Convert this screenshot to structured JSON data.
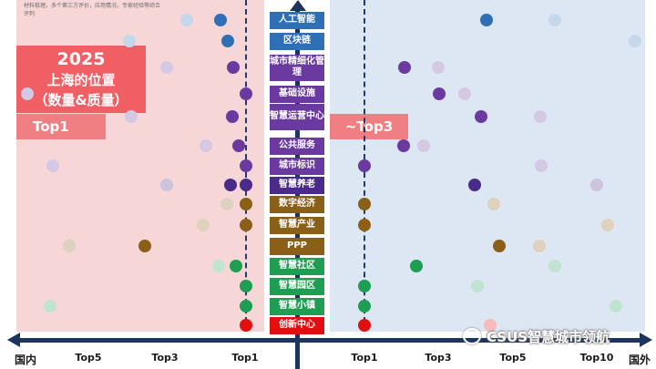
{
  "note": "材料梳理，多个第三方评价，应用情况，专家经验等综合 评判",
  "title": {
    "year": "2025",
    "line1": "上海的位置",
    "line2": "（数量&质量）"
  },
  "domestic_tag": "Top1",
  "international_tag": "~Top3",
  "axis": {
    "left_end": "国内",
    "right_end": "国外",
    "ticks": [
      "Top5",
      "Top3",
      "Top1",
      "Top1",
      "Top3",
      "Top5",
      "Top10"
    ]
  },
  "watermark": "CSUS智慧城市领航",
  "colors": {
    "domestic_bg": "#f7d6d7",
    "international_bg": "#dde6f3",
    "title_box": "#f05f63",
    "tag": "#f07f83",
    "axis": "#1d3461"
  },
  "categories": [
    {
      "label": "人工智能",
      "color": "#2f6fb5"
    },
    {
      "label": "区块链",
      "color": "#2f6fb5"
    },
    {
      "label": "城市精细化管理",
      "color": "#6a3aa0"
    },
    {
      "label": "基础设施",
      "color": "#6a3aa0"
    },
    {
      "label": "智慧运营中心",
      "color": "#6a3aa0"
    },
    {
      "label": "公共服务",
      "color": "#6a3aa0"
    },
    {
      "label": "城市标识",
      "color": "#6a3aa0"
    },
    {
      "label": "智慧养老",
      "color": "#4a2a8a"
    },
    {
      "label": "数字经济",
      "color": "#8a6018"
    },
    {
      "label": "智慧产业",
      "color": "#8a6018"
    },
    {
      "label": "PPP",
      "color": "#8a6018"
    },
    {
      "label": "智慧社区",
      "color": "#1e9e52"
    },
    {
      "label": "智慧园区",
      "color": "#1e9e52"
    },
    {
      "label": "智慧小镇",
      "color": "#1e9e52"
    },
    {
      "label": "创新中心",
      "color": "#e01010"
    }
  ]
}
